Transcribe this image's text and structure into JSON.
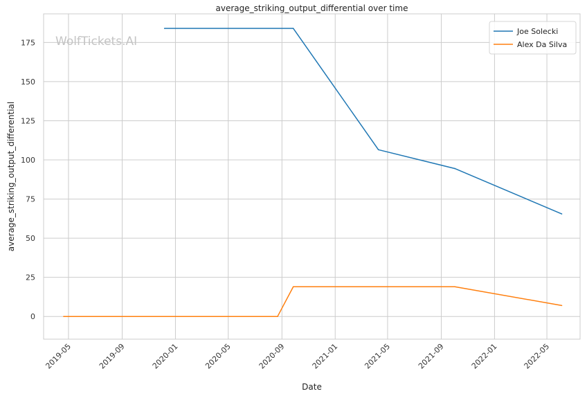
{
  "chart_data": {
    "type": "line",
    "title": "average_striking_output_differential over time",
    "xlabel": "Date",
    "ylabel": "average_striking_output_differential",
    "watermark": "WolfTickets.AI",
    "xlim": [
      "2019-03-05",
      "2022-07-16"
    ],
    "ylim": [
      -14.5,
      193.3
    ],
    "x_ticks": [
      "2019-05",
      "2019-09",
      "2020-01",
      "2020-05",
      "2020-09",
      "2021-01",
      "2021-05",
      "2021-09",
      "2022-01",
      "2022-05"
    ],
    "y_ticks": [
      0,
      25,
      50,
      75,
      100,
      125,
      150,
      175
    ],
    "grid": true,
    "legend_position": "top-right",
    "series": [
      {
        "name": "Joe Solecki",
        "color": "#1f77b4",
        "points": [
          {
            "x": "2019-12-07",
            "y": 184
          },
          {
            "x": "2020-09-27",
            "y": 184
          },
          {
            "x": "2021-04-10",
            "y": 106.5
          },
          {
            "x": "2021-10-02",
            "y": 94.5
          },
          {
            "x": "2022-06-04",
            "y": 65.5
          }
        ]
      },
      {
        "name": "Alex Da Silva",
        "color": "#ff7f0e",
        "points": [
          {
            "x": "2019-04-20",
            "y": 0
          },
          {
            "x": "2020-08-22",
            "y": 0
          },
          {
            "x": "2020-09-27",
            "y": 19
          },
          {
            "x": "2021-10-02",
            "y": 19
          },
          {
            "x": "2022-06-04",
            "y": 7
          }
        ]
      }
    ]
  }
}
